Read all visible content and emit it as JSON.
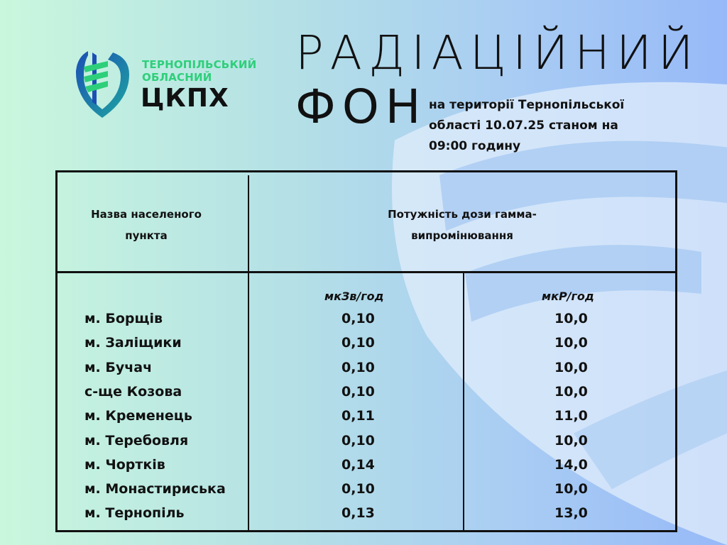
{
  "logo": {
    "line1": "ТЕРНОПІЛЬСЬКИЙ",
    "line2": "ОБЛАСНИЙ",
    "line3": "ЦКПХ"
  },
  "title": {
    "line1": "РАДІАЦІЙНИЙ",
    "line2": "ФОН"
  },
  "subtitle": "на території Тернопільської області 10.07.25 станом на 09:00 годину",
  "table": {
    "col1_header": "Назва населеного пункта",
    "col2_header": "Потужність дози гамма-випромінювання",
    "unit1": "мкЗв/год",
    "unit2": "мкР/год",
    "rows": [
      {
        "name": "м. Борщів",
        "sv": "0,10",
        "r": "10,0"
      },
      {
        "name": "м. Заліщики",
        "sv": "0,10",
        "r": "10,0"
      },
      {
        "name": "м. Бучач",
        "sv": "0,10",
        "r": "10,0"
      },
      {
        "name": "с-ще  Козова",
        "sv": "0,10",
        "r": "10,0"
      },
      {
        "name": "м. Кременець",
        "sv": "0,11",
        "r": "11,0"
      },
      {
        "name": "м. Теребовля",
        "sv": "0,10",
        "r": "10,0"
      },
      {
        "name": "м. Чортків",
        "sv": "0,14",
        "r": "14,0"
      },
      {
        "name": "м. Монастириська",
        "sv": "0,10",
        "r": "10,0"
      },
      {
        "name": "м. Тернопіль",
        "sv": "0,13",
        "r": "13,0"
      }
    ]
  },
  "colors": {
    "logo_green": "#2ecf7a",
    "logo_blue": "#1b4fb5"
  }
}
